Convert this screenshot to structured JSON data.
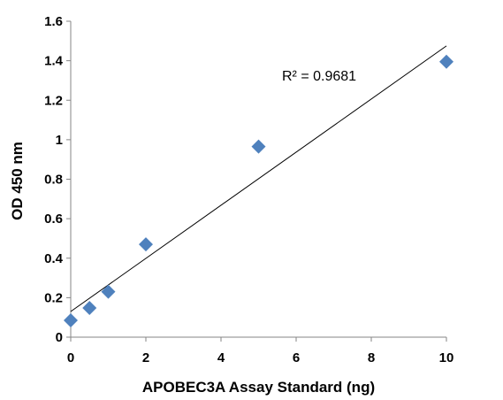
{
  "chart_data": {
    "type": "scatter",
    "title": "",
    "xlabel": "APOBEC3A Assay Standard (ng)",
    "ylabel": "OD 450 nm",
    "xlim": [
      0,
      10
    ],
    "ylim": [
      0,
      1.6
    ],
    "x_ticks": [
      "0",
      "2",
      "4",
      "6",
      "8",
      "10"
    ],
    "y_ticks": [
      "0",
      "0.2",
      "0.4",
      "0.6",
      "0.8",
      "1",
      "1.2",
      "1.4",
      "1.6"
    ],
    "grid": false,
    "legend": "none",
    "marker": "diamond",
    "marker_color": "#4F81BD",
    "series": [
      {
        "x": [
          0,
          0.5,
          1,
          2,
          5,
          10
        ],
        "y": [
          0.085,
          0.148,
          0.23,
          0.47,
          0.965,
          1.395
        ]
      }
    ],
    "trendline": {
      "type": "linear",
      "y_at_xmin": 0.13,
      "y_at_xmax": 1.475,
      "label": "R² = 0.9681"
    }
  }
}
